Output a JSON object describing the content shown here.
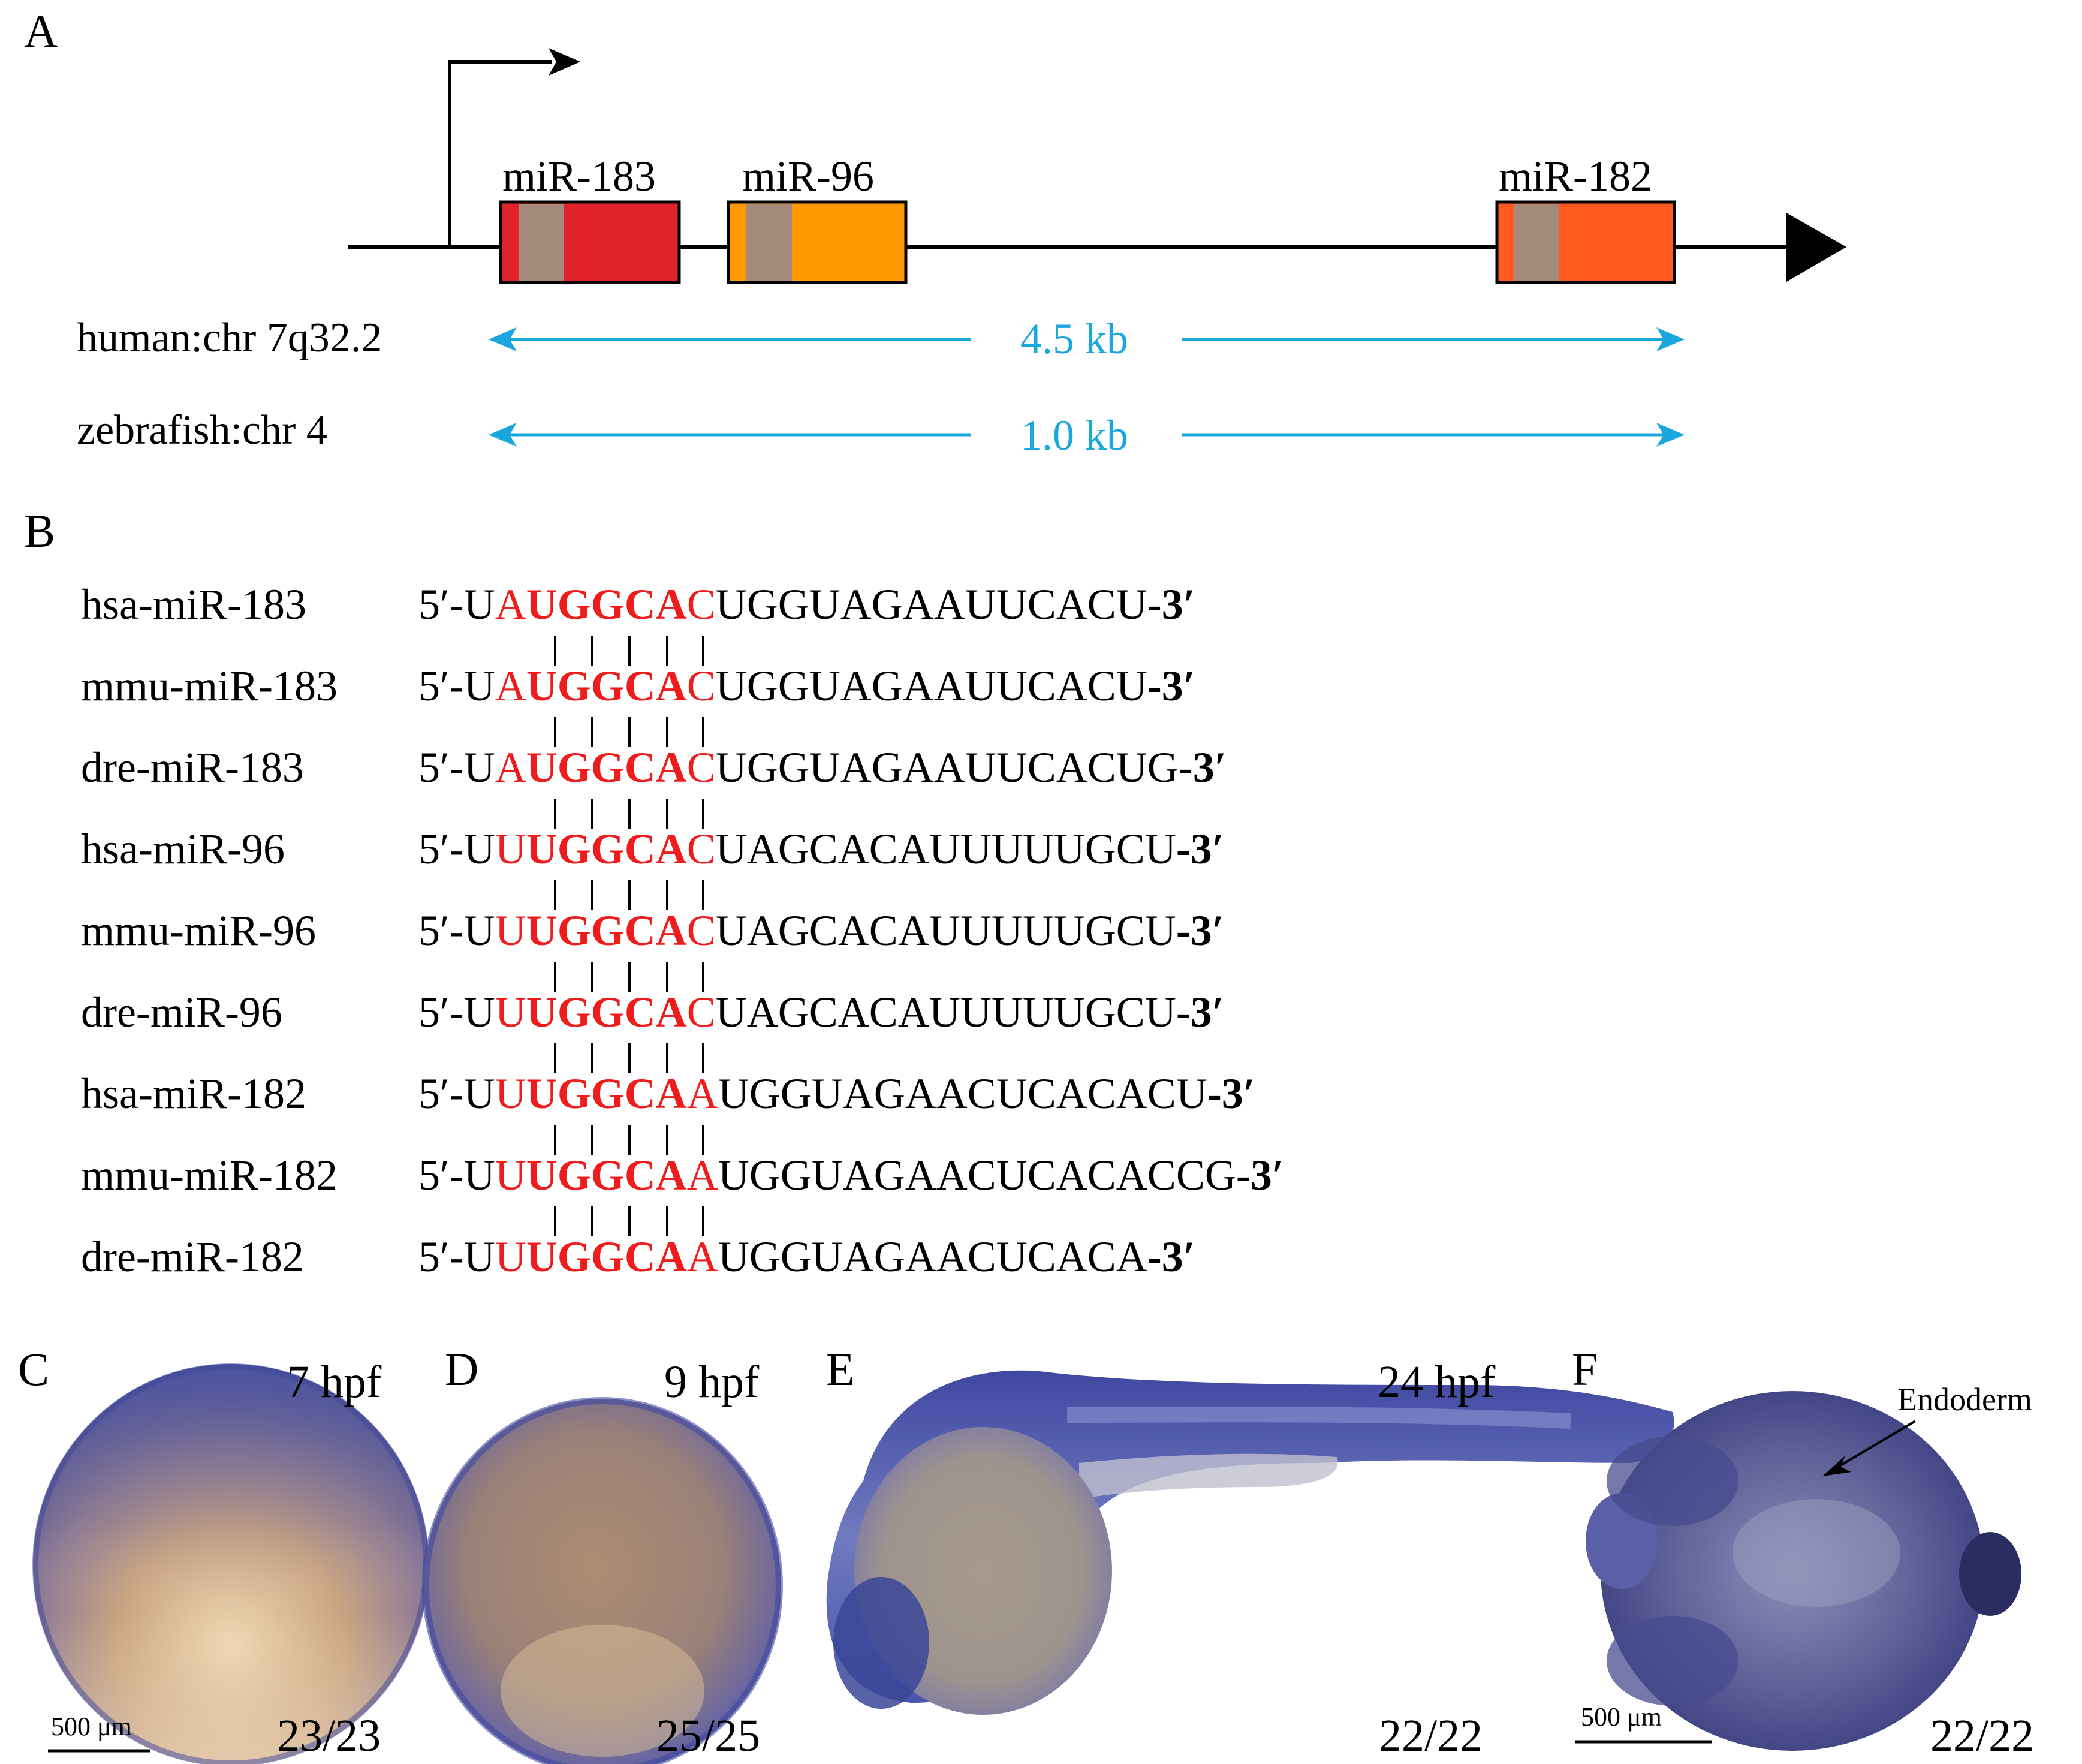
{
  "panels": {
    "A": "A",
    "B": "B",
    "C": "C",
    "D": "D",
    "E": "E",
    "F": "F"
  },
  "gene_diagram": {
    "genes": [
      {
        "name": "miR-183",
        "color": "#e0222a"
      },
      {
        "name": "miR-96",
        "color": "#ff9900"
      },
      {
        "name": "miR-182",
        "color": "#ff5a1f"
      }
    ],
    "seed_color": "#a38a7a",
    "loci": [
      {
        "species": "human:chr 7q32.2",
        "distance": "4.5 kb"
      },
      {
        "species": "zebrafish:chr 4",
        "distance": "1.0 kb"
      }
    ],
    "arrow_color": "#1aa7dd"
  },
  "alignment": {
    "seed_color": "#ee1c1c",
    "rows": [
      {
        "name": "hsa-miR-183",
        "prefix": "5′-U",
        "seed": [
          "A",
          "U",
          "G",
          "G",
          "C",
          "A",
          "C"
        ],
        "rest": "UGGUAGAAUUCACU",
        "suffix": "-3′"
      },
      {
        "name": "mmu-miR-183",
        "prefix": "5′-U",
        "seed": [
          "A",
          "U",
          "G",
          "G",
          "C",
          "A",
          "C"
        ],
        "rest": "UGGUAGAAUUCACU",
        "suffix": "-3′"
      },
      {
        "name": "dre-miR-183",
        "prefix": "5′-U",
        "seed": [
          "A",
          "U",
          "G",
          "G",
          "C",
          "A",
          "C"
        ],
        "rest": "UGGUAGAAUUCACUG",
        "suffix": "-3′"
      },
      {
        "name": "hsa-miR-96",
        "prefix": "5′-U",
        "seed": [
          "U",
          "U",
          "G",
          "G",
          "C",
          "A",
          "C"
        ],
        "rest": "UAGCACAUUUUUGCU",
        "suffix": "-3′"
      },
      {
        "name": "mmu-miR-96",
        "prefix": "5′-U",
        "seed": [
          "U",
          "U",
          "G",
          "G",
          "C",
          "A",
          "C"
        ],
        "rest": "UAGCACAUUUUUGCU",
        "suffix": "-3′"
      },
      {
        "name": "dre-miR-96",
        "prefix": "5′-U",
        "seed": [
          "U",
          "U",
          "G",
          "G",
          "C",
          "A",
          "C"
        ],
        "rest": "UAGCACAUUUUUGCU",
        "suffix": "-3′"
      },
      {
        "name": "hsa-miR-182",
        "prefix": "5′-U",
        "seed": [
          "U",
          "U",
          "G",
          "G",
          "C",
          "A",
          "A"
        ],
        "rest": "UGGUAGAACUCACACU",
        "suffix": "-3′"
      },
      {
        "name": "mmu-miR-182",
        "prefix": "5′-U",
        "seed": [
          "U",
          "U",
          "G",
          "G",
          "C",
          "A",
          "A"
        ],
        "rest": "UGGUAGAACUCACACCG",
        "suffix": "-3′"
      },
      {
        "name": "dre-miR-182",
        "prefix": "5′-U",
        "seed": [
          "U",
          "U",
          "G",
          "G",
          "C",
          "A",
          "A"
        ],
        "rest": "UGGUAGAACUCACA",
        "suffix": "-3′"
      }
    ]
  },
  "embryos": [
    {
      "panel": "C",
      "stage": "7 hpf",
      "count": "23/23",
      "scale": "500 μm"
    },
    {
      "panel": "D",
      "stage": "9 hpf",
      "count": "25/25"
    },
    {
      "panel": "E",
      "stage": "24 hpf",
      "count": "22/22"
    },
    {
      "panel": "F",
      "stage": "",
      "count": "22/22",
      "scale": "500 μm",
      "annotation": "Endoderm"
    }
  ]
}
